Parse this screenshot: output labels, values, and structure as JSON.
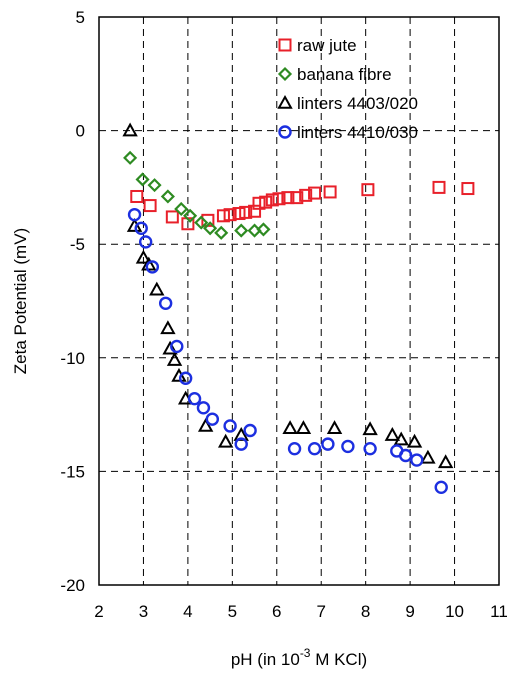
{
  "chart_data": {
    "type": "scatter",
    "title": "",
    "xlabel": "pH (in 10",
    "xlabel_sup": "-3",
    "xlabel_suffix": " M KCl)",
    "ylabel": "Zeta Potential (mV)",
    "xlim": [
      2,
      11
    ],
    "ylim": [
      -20,
      5
    ],
    "xticks": [
      2,
      3,
      4,
      5,
      6,
      7,
      8,
      9,
      10,
      11
    ],
    "yticks": [
      -20,
      -15,
      -10,
      -5,
      0,
      5
    ],
    "grid": true,
    "legend_position": "top-right",
    "series": [
      {
        "name": "raw jute",
        "marker": "square",
        "color": "#e8202a",
        "points": [
          [
            2.85,
            -2.9
          ],
          [
            3.15,
            -3.3
          ],
          [
            3.65,
            -3.8
          ],
          [
            4.0,
            -4.1
          ],
          [
            4.45,
            -3.95
          ],
          [
            4.8,
            -3.75
          ],
          [
            4.95,
            -3.7
          ],
          [
            5.15,
            -3.65
          ],
          [
            5.3,
            -3.6
          ],
          [
            5.5,
            -3.55
          ],
          [
            5.6,
            -3.2
          ],
          [
            5.75,
            -3.15
          ],
          [
            5.9,
            -3.05
          ],
          [
            6.05,
            -3.0
          ],
          [
            6.25,
            -2.95
          ],
          [
            6.45,
            -2.95
          ],
          [
            6.65,
            -2.85
          ],
          [
            6.85,
            -2.75
          ],
          [
            7.2,
            -2.7
          ],
          [
            8.05,
            -2.6
          ],
          [
            9.65,
            -2.5
          ],
          [
            10.3,
            -2.55
          ]
        ]
      },
      {
        "name": "banana fibre",
        "marker": "diamond",
        "color": "#2e8b22",
        "points": [
          [
            2.7,
            -1.2
          ],
          [
            2.98,
            -2.15
          ],
          [
            3.25,
            -2.4
          ],
          [
            3.55,
            -2.9
          ],
          [
            3.85,
            -3.45
          ],
          [
            4.05,
            -3.75
          ],
          [
            4.3,
            -4.05
          ],
          [
            4.5,
            -4.3
          ],
          [
            4.75,
            -4.5
          ],
          [
            5.2,
            -4.4
          ],
          [
            5.5,
            -4.4
          ],
          [
            5.7,
            -4.35
          ]
        ]
      },
      {
        "name": "linters 4403/020",
        "marker": "triangle",
        "color": "#000000",
        "points": [
          [
            2.7,
            0.0
          ],
          [
            2.8,
            -4.2
          ],
          [
            3.0,
            -5.6
          ],
          [
            3.12,
            -5.9
          ],
          [
            3.3,
            -7.0
          ],
          [
            3.55,
            -8.7
          ],
          [
            3.6,
            -9.6
          ],
          [
            3.7,
            -10.1
          ],
          [
            3.8,
            -10.8
          ],
          [
            3.95,
            -11.8
          ],
          [
            4.4,
            -13.0
          ],
          [
            4.85,
            -13.7
          ],
          [
            5.2,
            -13.4
          ],
          [
            6.3,
            -13.1
          ],
          [
            6.6,
            -13.1
          ],
          [
            7.3,
            -13.1
          ],
          [
            8.1,
            -13.15
          ],
          [
            8.6,
            -13.4
          ],
          [
            8.8,
            -13.6
          ],
          [
            9.1,
            -13.7
          ],
          [
            9.4,
            -14.4
          ],
          [
            9.8,
            -14.6
          ]
        ]
      },
      {
        "name": "linters 4410/030",
        "marker": "circle",
        "color": "#1c2fe0",
        "points": [
          [
            2.8,
            -3.7
          ],
          [
            2.95,
            -4.3
          ],
          [
            3.05,
            -4.9
          ],
          [
            3.2,
            -6.0
          ],
          [
            3.5,
            -7.6
          ],
          [
            3.75,
            -9.5
          ],
          [
            3.95,
            -10.9
          ],
          [
            4.15,
            -11.8
          ],
          [
            4.35,
            -12.2
          ],
          [
            4.55,
            -12.7
          ],
          [
            4.95,
            -13.0
          ],
          [
            5.2,
            -13.8
          ],
          [
            5.4,
            -13.2
          ],
          [
            6.4,
            -14.0
          ],
          [
            6.85,
            -14.0
          ],
          [
            7.15,
            -13.8
          ],
          [
            7.6,
            -13.9
          ],
          [
            8.1,
            -14.0
          ],
          [
            8.7,
            -14.1
          ],
          [
            8.9,
            -14.3
          ],
          [
            9.15,
            -14.5
          ],
          [
            9.7,
            -15.7
          ]
        ]
      }
    ]
  }
}
